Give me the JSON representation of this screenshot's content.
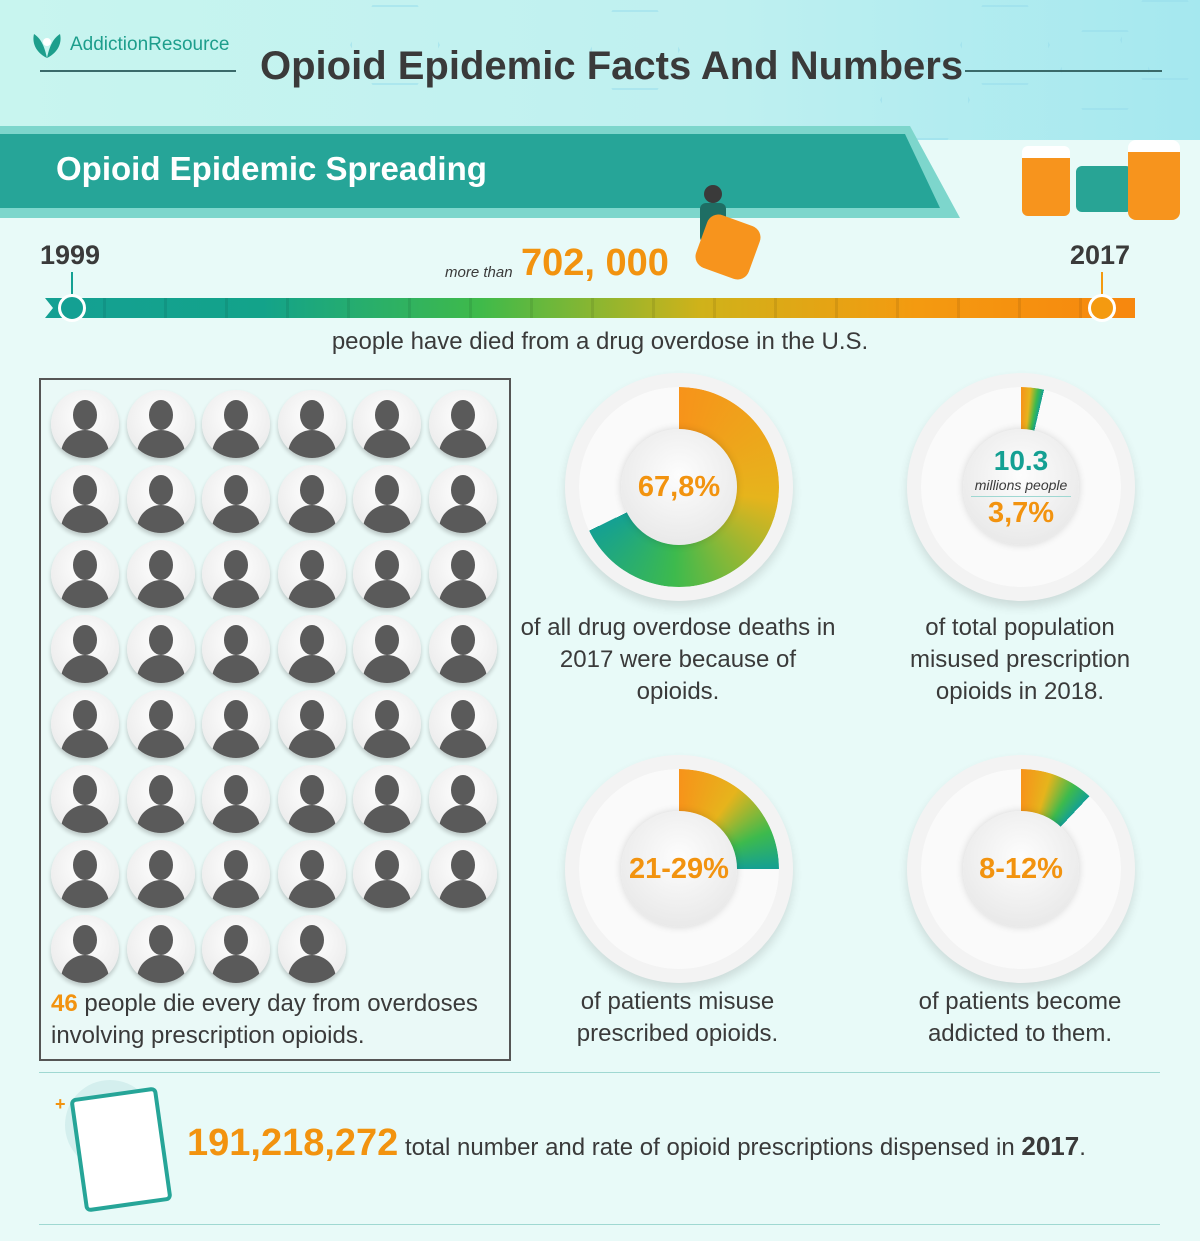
{
  "brand": {
    "logo_text_a": "Addiction",
    "logo_text_b": "Resource"
  },
  "title": "Opioid Epidemic Facts And Numbers",
  "section_title": "Opioid Epidemic Spreading",
  "timeline": {
    "start_year": "1999",
    "end_year": "2017",
    "prefix": "more than",
    "deaths": "702, 000",
    "caption": "people have died from a drug overdose in the U.S.",
    "colors": [
      "#14a093",
      "#3fba4a",
      "#f49a10"
    ]
  },
  "people": {
    "count": 46,
    "highlight": "46",
    "caption_rest": " people die every day from overdoses involving prescription opioids."
  },
  "stats": [
    {
      "value": "67,8%",
      "fill": 0.678,
      "caption": "of all drug overdose deaths in 2017 were because of opioids."
    },
    {
      "value_top": "10.3",
      "unit": "millions people",
      "value": "3,7%",
      "fill": 0.037,
      "caption": "of total population misused prescription opioids in 2018."
    },
    {
      "value": "21-29%",
      "fill": 0.25,
      "caption": "of patients misuse prescribed opioids."
    },
    {
      "value": "8-12%",
      "fill": 0.12,
      "caption": "of patients become addicted to them."
    }
  ],
  "prescriptions": {
    "number": "191,218,272",
    "text": " total number and rate of opioid prescriptions dispensed in ",
    "year": "2017",
    "end": "."
  },
  "colors": {
    "teal": "#26a598",
    "orange": "#f2930f",
    "dark": "#3a3a3a"
  }
}
